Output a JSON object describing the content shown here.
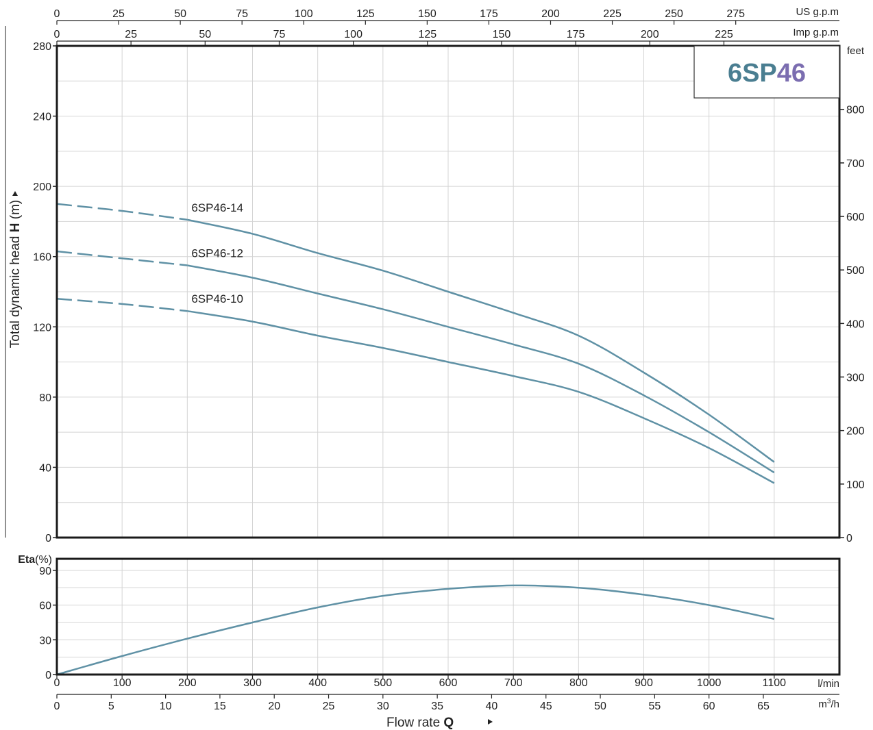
{
  "badge": {
    "part1": "6SP",
    "part2": "46",
    "color1": "#4a7e91",
    "color2": "#7b6db0"
  },
  "curve_color": "#5f91a5",
  "chart_data": [
    {
      "type": "line",
      "title": "",
      "ylabel": {
        "prefix": "Total dynamic head ",
        "bold": "H",
        "suffix": " (m)"
      },
      "xlim": [
        0,
        1200
      ],
      "ylim": [
        0,
        280
      ],
      "y_ticks": [
        0,
        40,
        80,
        120,
        160,
        200,
        240,
        280
      ],
      "x_grid": [
        0,
        100,
        200,
        300,
        400,
        500,
        600,
        700,
        800,
        900,
        1000,
        1100,
        1200
      ],
      "right_axis": {
        "unit": "feet",
        "ticks": [
          0,
          100,
          200,
          300,
          400,
          500,
          600,
          700,
          800
        ]
      },
      "top_axes": [
        {
          "unit": "US g.p.m",
          "ticks": [
            0,
            25,
            50,
            75,
            100,
            125,
            150,
            175,
            200,
            225,
            250,
            275
          ]
        },
        {
          "unit": "Imp g.p.m",
          "ticks": [
            0,
            25,
            50,
            75,
            100,
            125,
            150,
            175,
            200,
            225
          ]
        }
      ],
      "series": [
        {
          "name": "6SP46-14",
          "dashed_until": 200,
          "x": [
            0,
            100,
            200,
            300,
            400,
            500,
            600,
            700,
            800,
            900,
            1000,
            1100
          ],
          "y": [
            190,
            186,
            181,
            173,
            162,
            152,
            140,
            128,
            115,
            94,
            70,
            43
          ]
        },
        {
          "name": "6SP46-12",
          "dashed_until": 200,
          "x": [
            0,
            100,
            200,
            300,
            400,
            500,
            600,
            700,
            800,
            900,
            1000,
            1100
          ],
          "y": [
            163,
            159,
            155,
            148,
            139,
            130,
            120,
            110,
            99,
            81,
            60,
            37
          ]
        },
        {
          "name": "6SP46-10",
          "dashed_until": 200,
          "x": [
            0,
            100,
            200,
            300,
            400,
            500,
            600,
            700,
            800,
            900,
            1000,
            1100
          ],
          "y": [
            136,
            133,
            129,
            123,
            115,
            108,
            100,
            92,
            83,
            68,
            51,
            31
          ]
        }
      ]
    },
    {
      "type": "line",
      "title": "",
      "ylabel": {
        "bold": "Eta",
        "suffix": "(%)"
      },
      "xlim": [
        0,
        1200
      ],
      "ylim": [
        0,
        100
      ],
      "y_ticks": [
        0,
        30,
        60,
        90
      ],
      "series": [
        {
          "name": "",
          "x": [
            0,
            100,
            200,
            300,
            400,
            500,
            600,
            700,
            800,
            900,
            1000,
            1100
          ],
          "y": [
            0,
            16,
            31,
            45,
            58,
            68,
            74,
            77,
            75,
            69,
            60,
            48
          ]
        }
      ],
      "x_axes": [
        {
          "unit": "l/min",
          "ticks": [
            0,
            100,
            200,
            300,
            400,
            500,
            600,
            700,
            800,
            900,
            1000,
            1100
          ]
        },
        {
          "unit_base": "m",
          "unit_sup": "3",
          "unit_tail": "/h",
          "ticks": [
            0,
            5,
            10,
            15,
            20,
            25,
            30,
            35,
            40,
            45,
            50,
            55,
            60,
            65
          ]
        }
      ],
      "xlabel": {
        "text": "Flow  rate  ",
        "bold": "Q"
      }
    }
  ]
}
